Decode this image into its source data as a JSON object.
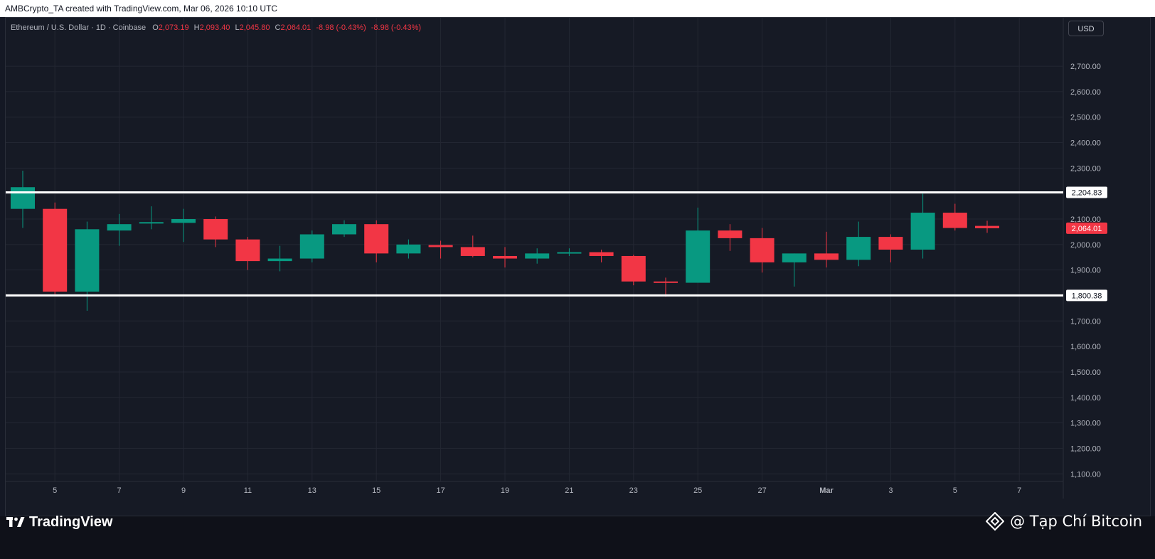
{
  "header": {
    "author_line": "AMBCrypto_TA created with TradingView.com, Mar 06, 2026 10:10 UTC"
  },
  "legend": {
    "symbol": "Ethereum / U.S. Dollar · 1D · Coinbase",
    "o_label": "O",
    "o_value": "2,073.19",
    "h_label": "H",
    "h_value": "2,093.40",
    "l_label": "L",
    "l_value": "2,045.80",
    "c_label": "C",
    "c_value": "2,064.01",
    "change": "-8.98 (-0.43%)",
    "change2": "-8.98 (-0.43%)"
  },
  "currency_button": "USD",
  "branding": {
    "logo_text": "TradingView",
    "watermark": "@ Tạp Chí Bitcoin"
  },
  "colors": {
    "up": "#089981",
    "down": "#f23645",
    "background": "#161a25",
    "grid": "#232733",
    "text": "#b2b5be",
    "level_line": "#ffffff"
  },
  "chart_data": {
    "type": "candlestick",
    "title": "Ethereum / U.S. Dollar · 1D · Coinbase",
    "ylim": [
      1070,
      2890
    ],
    "y_ticks": [
      1100,
      1200,
      1300,
      1400,
      1500,
      1600,
      1700,
      1800,
      1900,
      2000,
      2100,
      2200,
      2300,
      2400,
      2500,
      2600,
      2700
    ],
    "y_tick_labels": [
      "1,100.00",
      "1,200.00",
      "1,300.00",
      "1,400.00",
      "1,500.00",
      "1,600.00",
      "1,700.00",
      "1,800.00",
      "1,900.00",
      "2,000.00",
      "2,100.00",
      "2,200.00",
      "2,300.00",
      "2,400.00",
      "2,500.00",
      "2,600.00",
      "2,700.00"
    ],
    "x_tick_labels": [
      "5",
      "7",
      "9",
      "11",
      "13",
      "15",
      "17",
      "19",
      "21",
      "23",
      "25",
      "27",
      "Mar",
      "3",
      "5",
      "7"
    ],
    "x_tick_slots": [
      1,
      3,
      5,
      7,
      9,
      11,
      13,
      15,
      17,
      19,
      21,
      23,
      25,
      27,
      29,
      31
    ],
    "candles": [
      {
        "o": 2140,
        "h": 2290,
        "l": 2065,
        "c": 2225
      },
      {
        "o": 2140,
        "h": 2165,
        "l": 1805,
        "c": 1815
      },
      {
        "o": 1815,
        "h": 2090,
        "l": 1740,
        "c": 2060
      },
      {
        "o": 2055,
        "h": 2120,
        "l": 1995,
        "c": 2080
      },
      {
        "o": 2085,
        "h": 2150,
        "l": 2060,
        "c": 2088
      },
      {
        "o": 2085,
        "h": 2140,
        "l": 2010,
        "c": 2100
      },
      {
        "o": 2100,
        "h": 2110,
        "l": 1990,
        "c": 2020
      },
      {
        "o": 2020,
        "h": 2030,
        "l": 1900,
        "c": 1935
      },
      {
        "o": 1935,
        "h": 1995,
        "l": 1895,
        "c": 1945
      },
      {
        "o": 1945,
        "h": 2055,
        "l": 1930,
        "c": 2040
      },
      {
        "o": 2040,
        "h": 2095,
        "l": 2030,
        "c": 2080
      },
      {
        "o": 2080,
        "h": 2095,
        "l": 1930,
        "c": 1965
      },
      {
        "o": 1965,
        "h": 2020,
        "l": 1945,
        "c": 2000
      },
      {
        "o": 1998,
        "h": 2015,
        "l": 1945,
        "c": 1990
      },
      {
        "o": 1990,
        "h": 2035,
        "l": 1950,
        "c": 1955
      },
      {
        "o": 1955,
        "h": 1990,
        "l": 1910,
        "c": 1945
      },
      {
        "o": 1945,
        "h": 1985,
        "l": 1925,
        "c": 1965
      },
      {
        "o": 1965,
        "h": 1985,
        "l": 1955,
        "c": 1970
      },
      {
        "o": 1970,
        "h": 1980,
        "l": 1930,
        "c": 1955
      },
      {
        "o": 1955,
        "h": 1960,
        "l": 1840,
        "c": 1855
      },
      {
        "o": 1855,
        "h": 1870,
        "l": 1795,
        "c": 1850
      },
      {
        "o": 1850,
        "h": 2145,
        "l": 1850,
        "c": 2055
      },
      {
        "o": 2055,
        "h": 2080,
        "l": 1975,
        "c": 2025
      },
      {
        "o": 2025,
        "h": 2065,
        "l": 1890,
        "c": 1930
      },
      {
        "o": 1930,
        "h": 1965,
        "l": 1835,
        "c": 1965
      },
      {
        "o": 1965,
        "h": 2050,
        "l": 1910,
        "c": 1940
      },
      {
        "o": 1940,
        "h": 2090,
        "l": 1915,
        "c": 2030
      },
      {
        "o": 2030,
        "h": 2040,
        "l": 1930,
        "c": 1980
      },
      {
        "o": 1980,
        "h": 2200,
        "l": 1945,
        "c": 2125
      },
      {
        "o": 2125,
        "h": 2160,
        "l": 2055,
        "c": 2065
      },
      {
        "o": 2073.19,
        "h": 2093.4,
        "l": 2045.8,
        "c": 2064.01
      }
    ],
    "levels": [
      {
        "value": 2204.83,
        "label": "2,204.83"
      },
      {
        "value": 1800.38,
        "label": "1,800.38"
      }
    ],
    "last_price": {
      "value": 2064.01,
      "label": "2,064.01"
    }
  }
}
